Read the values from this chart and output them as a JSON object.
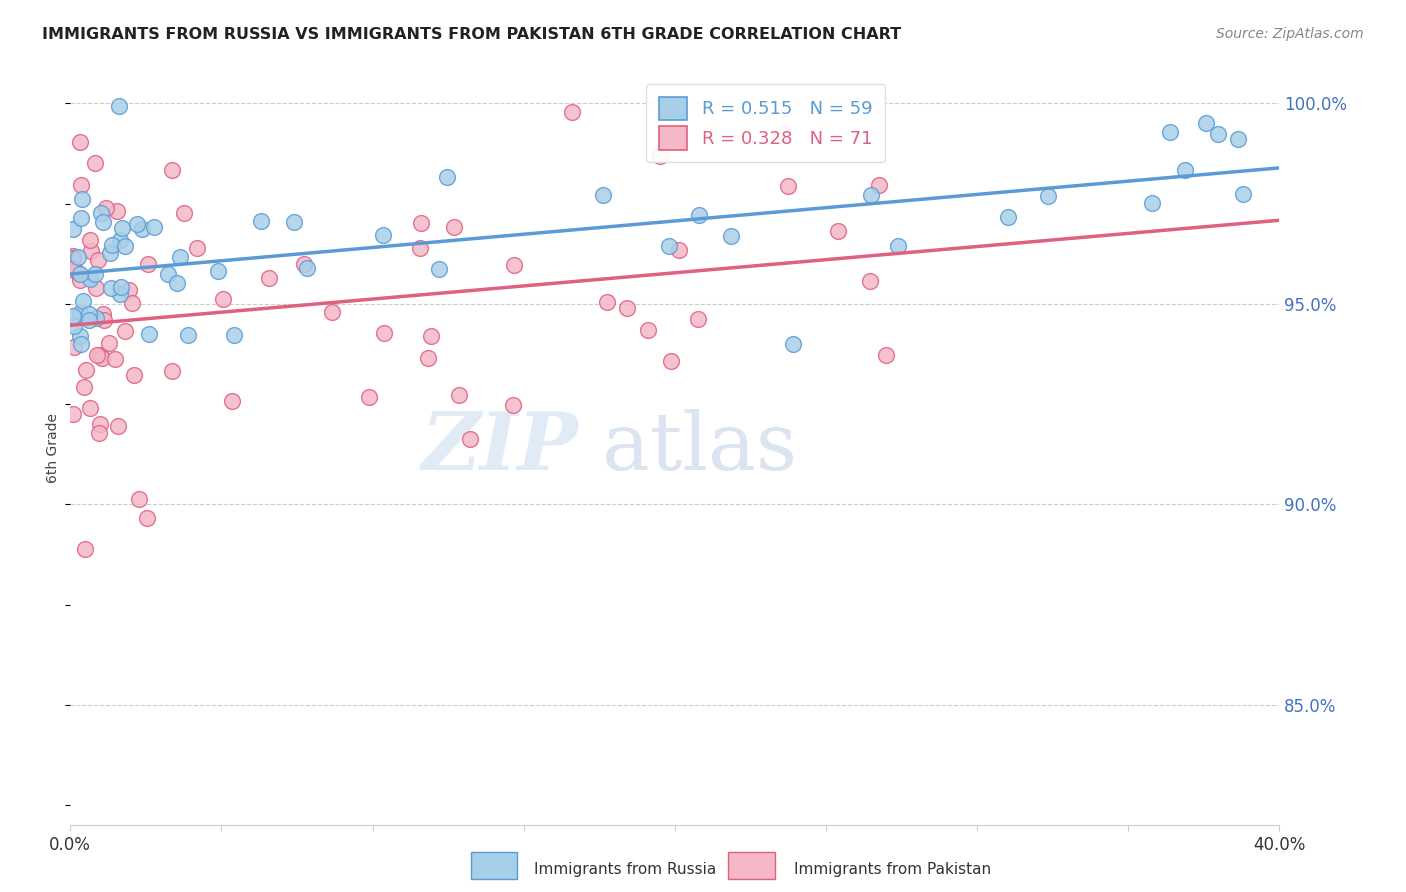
{
  "title": "IMMIGRANTS FROM RUSSIA VS IMMIGRANTS FROM PAKISTAN 6TH GRADE CORRELATION CHART",
  "source": "Source: ZipAtlas.com",
  "ylabel": "6th Grade",
  "x_min": 0.0,
  "x_max": 0.4,
  "y_min": 0.82,
  "y_max": 1.008,
  "y_ticks": [
    0.85,
    0.9,
    0.95,
    1.0
  ],
  "y_tick_labels": [
    "85.0%",
    "90.0%",
    "95.0%",
    "100.0%"
  ],
  "russia_color": "#a8cfe8",
  "russia_edge_color": "#5b9bd5",
  "pakistan_color": "#f4b8c8",
  "pakistan_edge_color": "#e06080",
  "russia_R": 0.515,
  "russia_N": 59,
  "pakistan_R": 0.328,
  "pakistan_N": 71,
  "russia_label": "Immigrants from Russia",
  "pakistan_label": "Immigrants from Pakistan",
  "watermark_zip": "ZIP",
  "watermark_atlas": "atlas",
  "background_color": "#ffffff",
  "grid_color": "#cccccc",
  "tick_label_color": "#4472c4",
  "title_color": "#222222",
  "source_color": "#888888"
}
